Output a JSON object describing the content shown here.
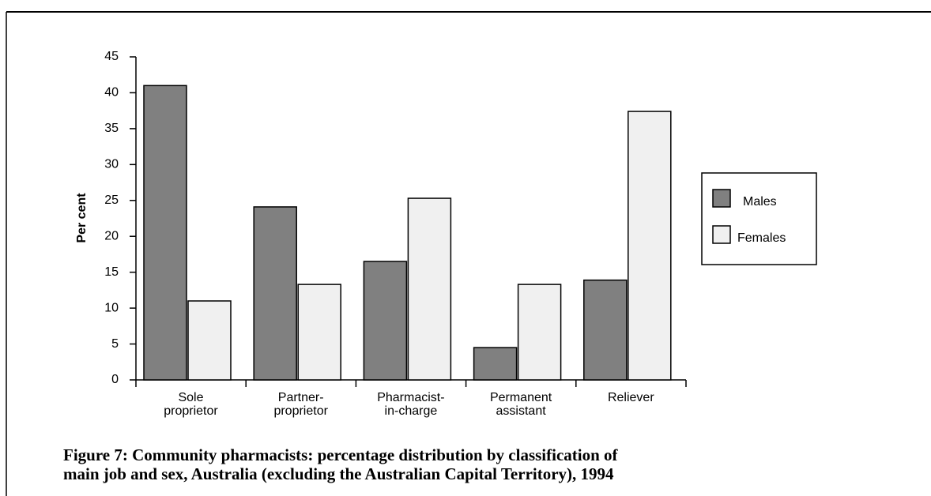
{
  "chart_data": {
    "type": "bar",
    "title": "Figure 7: Community pharmacists: percentage distribution by classification of\nmain job and sex, Australia (excluding the Australian Capital Territory), 1994",
    "y_label": "Per cent",
    "categories": [
      "Sole\nproprietor",
      "Partner-\nproprietor",
      "Pharmacist-\nin-charge",
      "Permanent\nassistant",
      "Reliever"
    ],
    "series": [
      {
        "name": "Males",
        "color": "#808080",
        "values": [
          41,
          24.1,
          16.5,
          4.5,
          13.9
        ]
      },
      {
        "name": "Females",
        "color": "#f0f0f0",
        "values": [
          11,
          13.3,
          25.3,
          13.3,
          37.4
        ]
      }
    ],
    "ylim": [
      0,
      45
    ],
    "yticks": [
      0,
      5,
      10,
      15,
      20,
      25,
      30,
      35,
      40,
      45
    ]
  }
}
